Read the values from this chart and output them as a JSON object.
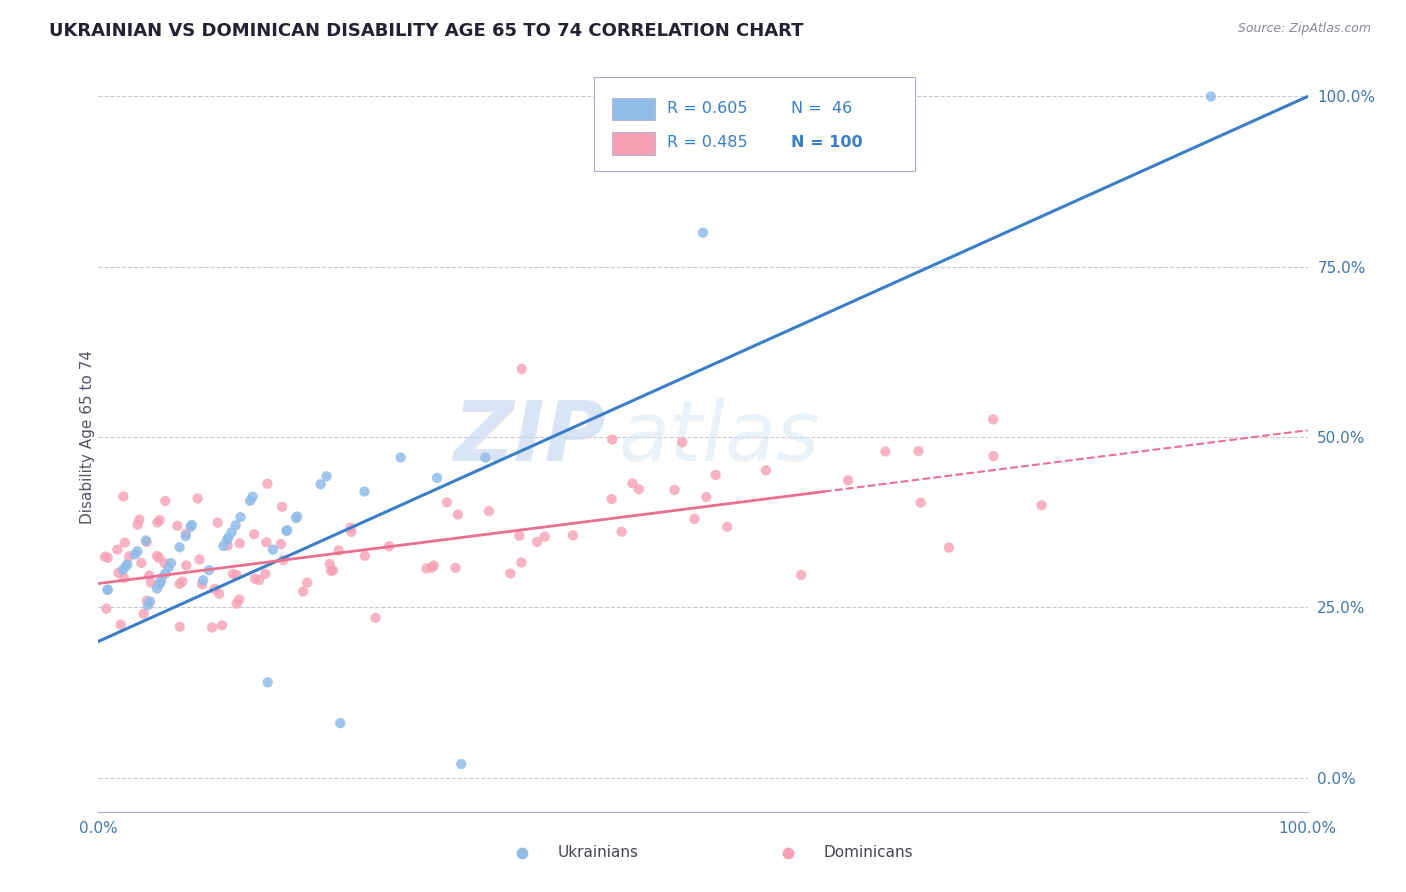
{
  "title": "UKRAINIAN VS DOMINICAN DISABILITY AGE 65 TO 74 CORRELATION CHART",
  "source": "Source: ZipAtlas.com",
  "ylabel": "Disability Age 65 to 74",
  "legend_label1": "Ukrainians",
  "legend_label2": "Dominicans",
  "r1": 0.605,
  "n1": 46,
  "r2": 0.485,
  "n2": 100,
  "xlim": [
    0.0,
    1.0
  ],
  "ylim": [
    -0.05,
    1.05
  ],
  "ytick_vals": [
    0.0,
    0.25,
    0.5,
    0.75,
    1.0
  ],
  "ytick_labels": [
    "0.0%",
    "25.0%",
    "50.0%",
    "75.0%",
    "100.0%"
  ],
  "xtick_vals": [
    0.0,
    1.0
  ],
  "xtick_labels": [
    "0.0%",
    "100.0%"
  ],
  "color_ukr": "#90bce8",
  "color_dom": "#f5a0b5",
  "color_ukr_line": "#3a7ec8",
  "color_dom_line": "#e87090",
  "watermark_zip": "ZIP",
  "watermark_atlas": "atlas",
  "ukr_line_x0": 0.0,
  "ukr_line_y0": 0.2,
  "ukr_line_x1": 1.0,
  "ukr_line_y1": 1.0,
  "dom_line_x0": 0.0,
  "dom_line_y0": 0.285,
  "dom_line_x1": 1.0,
  "dom_line_y1": 0.51
}
